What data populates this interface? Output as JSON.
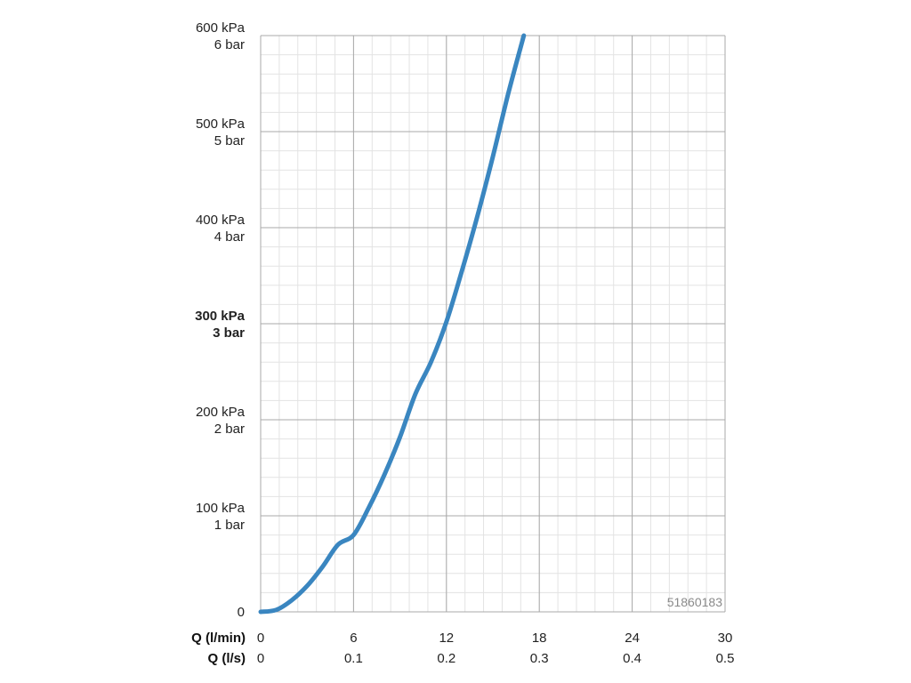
{
  "chart_data": {
    "type": "line",
    "y_ticks": [
      {
        "value": 600,
        "kpa": "600 kPa",
        "bar": "6 bar",
        "bold": false
      },
      {
        "value": 500,
        "kpa": "500 kPa",
        "bar": "5 bar",
        "bold": false
      },
      {
        "value": 400,
        "kpa": "400 kPa",
        "bar": "4 bar",
        "bold": false
      },
      {
        "value": 300,
        "kpa": "300 kPa",
        "bar": "3 bar",
        "bold": true
      },
      {
        "value": 200,
        "kpa": "200 kPa",
        "bar": "2 bar",
        "bold": false
      },
      {
        "value": 100,
        "kpa": "100 kPa",
        "bar": "1 bar",
        "bold": false
      },
      {
        "value": 0,
        "kpa": "0",
        "bar": "",
        "bold": false
      }
    ],
    "x_axis_1": {
      "label": "Q (l/min)",
      "ticks": [
        "0",
        "6",
        "12",
        "18",
        "24",
        "30"
      ]
    },
    "x_axis_2": {
      "label": "Q (l/s)",
      "ticks": [
        "0",
        "0.1",
        "0.2",
        "0.3",
        "0.4",
        "0.5"
      ]
    },
    "xlim": [
      0,
      30
    ],
    "ylim": [
      0,
      600
    ],
    "grid": true,
    "series": [
      {
        "color": "#3a86c0",
        "x": [
          0,
          1,
          2,
          3,
          4,
          5,
          6,
          7,
          8,
          9,
          10,
          11,
          12,
          13,
          14,
          15,
          16,
          17
        ],
        "y": [
          0,
          2,
          12,
          27,
          47,
          70,
          80,
          109,
          143,
          182,
          227,
          260,
          302,
          355,
          412,
          474,
          540,
          600
        ]
      }
    ],
    "annotation": "51860183"
  }
}
